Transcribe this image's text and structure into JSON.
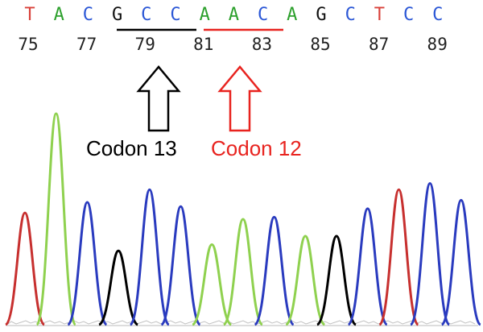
{
  "colors": {
    "A": "#2ca02c",
    "C": "#2b57d6",
    "G": "#111111",
    "T": "#d9413a",
    "A_trace": "#8fd14f",
    "C_trace": "#2a3bbf",
    "G_trace": "#000000",
    "T_trace": "#c7302f",
    "codon13": "#000000",
    "codon12": "#e8231f"
  },
  "sequence": {
    "bases": [
      "T",
      "A",
      "C",
      "G",
      "C",
      "C",
      "A",
      "A",
      "C",
      "A",
      "G",
      "C",
      "T",
      "C",
      "C"
    ],
    "positions": [
      "75",
      "77",
      "79",
      "81",
      "83",
      "85",
      "87",
      "89"
    ]
  },
  "codons": [
    {
      "label": "Codon 13",
      "color_key": "codon13",
      "arrow": "hollow-up-arrow"
    },
    {
      "label": "Codon 12",
      "color_key": "codon12",
      "arrow": "hollow-up-arrow"
    }
  ],
  "chromatogram": {
    "peaks": [
      {
        "base": "T",
        "height": 0.53
      },
      {
        "base": "A",
        "height": 1.0
      },
      {
        "base": "C",
        "height": 0.58
      },
      {
        "base": "G",
        "height": 0.35
      },
      {
        "base": "C",
        "height": 0.64
      },
      {
        "base": "C",
        "height": 0.56
      },
      {
        "base": "A",
        "height": 0.38
      },
      {
        "base": "A",
        "height": 0.5
      },
      {
        "base": "C",
        "height": 0.51
      },
      {
        "base": "A",
        "height": 0.42
      },
      {
        "base": "G",
        "height": 0.42
      },
      {
        "base": "C",
        "height": 0.55
      },
      {
        "base": "T",
        "height": 0.64
      },
      {
        "base": "C",
        "height": 0.67
      },
      {
        "base": "C",
        "height": 0.59
      }
    ]
  }
}
